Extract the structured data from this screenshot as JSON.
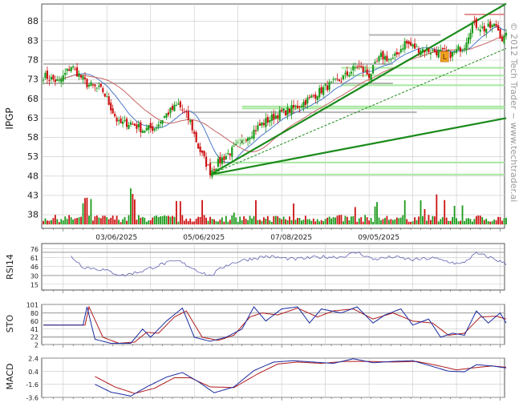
{
  "chart_data": {
    "type": "candlestick",
    "symbol": "IPGP",
    "watermark": "© 2012 Tech Trader ~ www.techtrader.ai",
    "x_date_labels": [
      "03/06/2025",
      "05/06/2025",
      "07/08/2025",
      "09/05/2025"
    ],
    "colors": {
      "up_candle": "#1a9a1a",
      "down_candle": "#cc1111",
      "sma_fast": "#4a78c8",
      "sma_slow": "#c86464",
      "trendline": "#1a8a1a",
      "support_line": "#a8e8a0",
      "resistance_line": "#b4b4b4",
      "rsi_line": "#6060b0",
      "sto_k": "#1a2aa0",
      "sto_d": "#b01a1a",
      "macd_line": "#1a2aa0",
      "signal_line": "#b01a1a",
      "grid": "#c8c8c8"
    },
    "price_panel": {
      "ylabel": "IPGP",
      "y_ticks": [
        88,
        83,
        78,
        73,
        68,
        63,
        58,
        53,
        48,
        43,
        38
      ],
      "ylim": [
        34.5,
        92.5
      ],
      "volume_baseline": 35.5,
      "volume_top": 42.0,
      "markers": [
        {
          "label": "x",
          "index": 100,
          "price": 56.6
        },
        {
          "label": "L",
          "index": 202,
          "price": 78.8
        }
      ],
      "anchors": [
        {
          "i": 0,
          "close": 74.0
        },
        {
          "i": 8,
          "close": 72.3
        },
        {
          "i": 14,
          "close": 76.5
        },
        {
          "i": 22,
          "close": 71.8
        },
        {
          "i": 30,
          "close": 70.0
        },
        {
          "i": 38,
          "close": 61.5
        },
        {
          "i": 44,
          "close": 61.8
        },
        {
          "i": 50,
          "close": 60.0
        },
        {
          "i": 56,
          "close": 60.5
        },
        {
          "i": 62,
          "close": 64.0
        },
        {
          "i": 68,
          "close": 66.5
        },
        {
          "i": 74,
          "close": 62.0
        },
        {
          "i": 78,
          "close": 55.5
        },
        {
          "i": 84,
          "close": 49.2
        },
        {
          "i": 90,
          "close": 52.5
        },
        {
          "i": 96,
          "close": 55.0
        },
        {
          "i": 102,
          "close": 58.0
        },
        {
          "i": 110,
          "close": 61.5
        },
        {
          "i": 118,
          "close": 64.0
        },
        {
          "i": 126,
          "close": 65.5
        },
        {
          "i": 134,
          "close": 68.0
        },
        {
          "i": 142,
          "close": 71.0
        },
        {
          "i": 150,
          "close": 73.0
        },
        {
          "i": 158,
          "close": 76.5
        },
        {
          "i": 164,
          "close": 74.0
        },
        {
          "i": 170,
          "close": 79.0
        },
        {
          "i": 176,
          "close": 78.0
        },
        {
          "i": 182,
          "close": 82.5
        },
        {
          "i": 188,
          "close": 81.0
        },
        {
          "i": 194,
          "close": 80.5
        },
        {
          "i": 200,
          "close": 80.0
        },
        {
          "i": 206,
          "close": 79.5
        },
        {
          "i": 212,
          "close": 82.0
        },
        {
          "i": 216,
          "close": 87.5
        },
        {
          "i": 222,
          "close": 86.0
        },
        {
          "i": 228,
          "close": 87.0
        },
        {
          "i": 231,
          "close": 83.5
        },
        {
          "i": 233,
          "close": 84.0
        }
      ],
      "trendlines": [
        {
          "i1": 84,
          "p1": 48.4,
          "i2": 233,
          "p2": 92.6,
          "style": "solid"
        },
        {
          "i1": 84,
          "p1": 48.4,
          "i2": 233,
          "p2": 63.0,
          "style": "solid"
        },
        {
          "i1": 84,
          "p1": 48.4,
          "i2": 233,
          "p2": 81.0,
          "style": "dashed"
        }
      ],
      "support_levels": [
        {
          "from": 150,
          "price": 76.0
        },
        {
          "from": 150,
          "price": 74.0
        },
        {
          "from": 150,
          "price": 71.5
        },
        {
          "from": 100,
          "price": 66.0
        },
        {
          "from": 100,
          "price": 65.5
        },
        {
          "from": 84,
          "price": 51.5
        },
        {
          "from": 84,
          "price": 48.4
        }
      ],
      "resistance_levels": [
        {
          "from": 0,
          "to": 176,
          "price": 77.0
        },
        {
          "from": 0,
          "to": 176,
          "price": 72.0
        },
        {
          "from": 74,
          "to": 188,
          "price": 64.5
        },
        {
          "from": 164,
          "to": 200,
          "price": 84.5
        }
      ],
      "red_resistance": {
        "from": 212,
        "to": 233,
        "price": 89.8
      }
    },
    "rsi_panel": {
      "ylabel": "RSI14",
      "y_ticks": [
        76,
        61,
        46,
        30,
        15
      ],
      "ylim": [
        5,
        85
      ],
      "guides": [
        70,
        30
      ],
      "anchors": [
        {
          "i": 14,
          "v": 63
        },
        {
          "i": 20,
          "v": 45
        },
        {
          "i": 30,
          "v": 40
        },
        {
          "i": 40,
          "v": 30
        },
        {
          "i": 50,
          "v": 38
        },
        {
          "i": 60,
          "v": 50
        },
        {
          "i": 68,
          "v": 55
        },
        {
          "i": 78,
          "v": 38
        },
        {
          "i": 84,
          "v": 29
        },
        {
          "i": 92,
          "v": 48
        },
        {
          "i": 100,
          "v": 56
        },
        {
          "i": 112,
          "v": 63
        },
        {
          "i": 126,
          "v": 58
        },
        {
          "i": 140,
          "v": 62
        },
        {
          "i": 150,
          "v": 62
        },
        {
          "i": 158,
          "v": 70
        },
        {
          "i": 166,
          "v": 58
        },
        {
          "i": 176,
          "v": 62
        },
        {
          "i": 186,
          "v": 57
        },
        {
          "i": 196,
          "v": 60
        },
        {
          "i": 204,
          "v": 54
        },
        {
          "i": 210,
          "v": 49
        },
        {
          "i": 218,
          "v": 68
        },
        {
          "i": 226,
          "v": 60
        },
        {
          "i": 233,
          "v": 50
        }
      ]
    },
    "sto_panel": {
      "ylabel": "STO",
      "y_ticks": [
        101,
        80,
        60,
        41,
        22,
        2
      ],
      "ylim": [
        2,
        101
      ],
      "guides": [
        80,
        20
      ],
      "k_anchors": [
        {
          "i": 0,
          "v": 50
        },
        {
          "i": 20,
          "v": 50
        },
        {
          "i": 22,
          "v": 95
        },
        {
          "i": 26,
          "v": 15
        },
        {
          "i": 34,
          "v": 5
        },
        {
          "i": 44,
          "v": 5
        },
        {
          "i": 50,
          "v": 40
        },
        {
          "i": 54,
          "v": 20
        },
        {
          "i": 62,
          "v": 60
        },
        {
          "i": 70,
          "v": 92
        },
        {
          "i": 76,
          "v": 20
        },
        {
          "i": 84,
          "v": 10
        },
        {
          "i": 92,
          "v": 20
        },
        {
          "i": 100,
          "v": 40
        },
        {
          "i": 106,
          "v": 95
        },
        {
          "i": 112,
          "v": 60
        },
        {
          "i": 120,
          "v": 90
        },
        {
          "i": 128,
          "v": 95
        },
        {
          "i": 134,
          "v": 55
        },
        {
          "i": 140,
          "v": 90
        },
        {
          "i": 150,
          "v": 80
        },
        {
          "i": 158,
          "v": 95
        },
        {
          "i": 166,
          "v": 55
        },
        {
          "i": 172,
          "v": 75
        },
        {
          "i": 180,
          "v": 90
        },
        {
          "i": 186,
          "v": 50
        },
        {
          "i": 194,
          "v": 65
        },
        {
          "i": 200,
          "v": 20
        },
        {
          "i": 206,
          "v": 30
        },
        {
          "i": 212,
          "v": 25
        },
        {
          "i": 218,
          "v": 85
        },
        {
          "i": 224,
          "v": 55
        },
        {
          "i": 230,
          "v": 80
        },
        {
          "i": 233,
          "v": 55
        }
      ],
      "d_anchors": [
        {
          "i": 0,
          "v": 50
        },
        {
          "i": 21,
          "v": 50
        },
        {
          "i": 23,
          "v": 95
        },
        {
          "i": 30,
          "v": 20
        },
        {
          "i": 38,
          "v": 5
        },
        {
          "i": 46,
          "v": 8
        },
        {
          "i": 52,
          "v": 32
        },
        {
          "i": 58,
          "v": 30
        },
        {
          "i": 66,
          "v": 70
        },
        {
          "i": 72,
          "v": 85
        },
        {
          "i": 80,
          "v": 20
        },
        {
          "i": 88,
          "v": 12
        },
        {
          "i": 96,
          "v": 25
        },
        {
          "i": 104,
          "v": 70
        },
        {
          "i": 110,
          "v": 80
        },
        {
          "i": 118,
          "v": 75
        },
        {
          "i": 128,
          "v": 92
        },
        {
          "i": 138,
          "v": 70
        },
        {
          "i": 146,
          "v": 85
        },
        {
          "i": 156,
          "v": 90
        },
        {
          "i": 166,
          "v": 65
        },
        {
          "i": 176,
          "v": 80
        },
        {
          "i": 186,
          "v": 60
        },
        {
          "i": 196,
          "v": 55
        },
        {
          "i": 204,
          "v": 25
        },
        {
          "i": 212,
          "v": 30
        },
        {
          "i": 220,
          "v": 70
        },
        {
          "i": 228,
          "v": 72
        },
        {
          "i": 233,
          "v": 65
        }
      ]
    },
    "macd_panel": {
      "ylabel": "MACD",
      "y_ticks": [
        2.4,
        0.4,
        -1.6,
        -3.6
      ],
      "ylim": [
        -3.6,
        2.4
      ],
      "macd_anchors": [
        {
          "i": 26,
          "v": -1.6
        },
        {
          "i": 34,
          "v": -2.8
        },
        {
          "i": 44,
          "v": -3.4
        },
        {
          "i": 52,
          "v": -2.0
        },
        {
          "i": 62,
          "v": -0.5
        },
        {
          "i": 70,
          "v": 0.2
        },
        {
          "i": 78,
          "v": -1.2
        },
        {
          "i": 86,
          "v": -2.9
        },
        {
          "i": 96,
          "v": -2.0
        },
        {
          "i": 106,
          "v": 0.5
        },
        {
          "i": 116,
          "v": 1.8
        },
        {
          "i": 126,
          "v": 2.0
        },
        {
          "i": 136,
          "v": 1.8
        },
        {
          "i": 146,
          "v": 1.6
        },
        {
          "i": 156,
          "v": 2.3
        },
        {
          "i": 166,
          "v": 1.7
        },
        {
          "i": 176,
          "v": 1.9
        },
        {
          "i": 186,
          "v": 2.0
        },
        {
          "i": 194,
          "v": 1.3
        },
        {
          "i": 204,
          "v": 0.4
        },
        {
          "i": 212,
          "v": 0.3
        },
        {
          "i": 218,
          "v": 1.4
        },
        {
          "i": 226,
          "v": 1.2
        },
        {
          "i": 233,
          "v": 0.9
        }
      ],
      "signal_anchors": [
        {
          "i": 26,
          "v": -0.4
        },
        {
          "i": 36,
          "v": -2.0
        },
        {
          "i": 46,
          "v": -3.0
        },
        {
          "i": 56,
          "v": -2.2
        },
        {
          "i": 66,
          "v": -0.6
        },
        {
          "i": 74,
          "v": -0.6
        },
        {
          "i": 84,
          "v": -2.0
        },
        {
          "i": 96,
          "v": -2.1
        },
        {
          "i": 108,
          "v": 0.0
        },
        {
          "i": 118,
          "v": 1.5
        },
        {
          "i": 128,
          "v": 1.8
        },
        {
          "i": 140,
          "v": 1.6
        },
        {
          "i": 152,
          "v": 1.9
        },
        {
          "i": 164,
          "v": 1.9
        },
        {
          "i": 176,
          "v": 1.8
        },
        {
          "i": 188,
          "v": 1.9
        },
        {
          "i": 198,
          "v": 1.3
        },
        {
          "i": 208,
          "v": 0.6
        },
        {
          "i": 216,
          "v": 0.9
        },
        {
          "i": 226,
          "v": 1.2
        },
        {
          "i": 233,
          "v": 1.0
        }
      ]
    }
  }
}
